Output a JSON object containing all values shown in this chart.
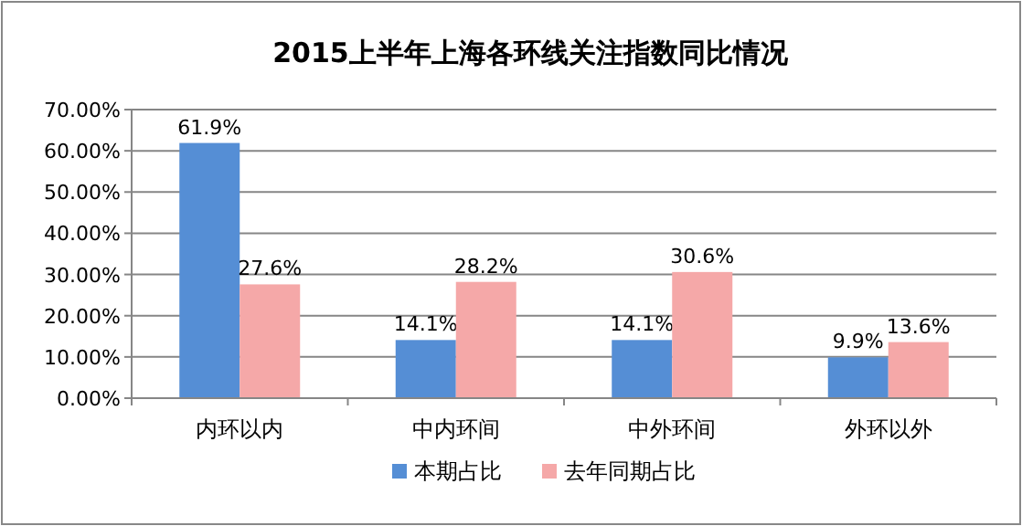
{
  "chart_data": {
    "type": "bar",
    "title": "2015上半年上海各环线关注指数同比情况",
    "categories": [
      "内环以内",
      "中内环间",
      "中外环间",
      "外环以外"
    ],
    "series": [
      {
        "name": "本期占比",
        "color": "#558ed5",
        "values": [
          61.9,
          14.1,
          14.1,
          9.9
        ],
        "value_labels": [
          "61.9%",
          "14.1%",
          "14.1%",
          "9.9%"
        ]
      },
      {
        "name": "去年同期占比",
        "color": "#f5a8a8",
        "values": [
          27.6,
          28.2,
          30.6,
          13.6
        ],
        "value_labels": [
          "27.6%",
          "28.2%",
          "30.6%",
          "13.6%"
        ]
      }
    ],
    "ylim": [
      0,
      70
    ],
    "yticks": [
      {
        "value": 0,
        "label": "0.00%"
      },
      {
        "value": 10,
        "label": "10.00%"
      },
      {
        "value": 20,
        "label": "20.00%"
      },
      {
        "value": 30,
        "label": "30.00%"
      },
      {
        "value": 40,
        "label": "40.00%"
      },
      {
        "value": 50,
        "label": "50.00%"
      },
      {
        "value": 60,
        "label": "60.00%"
      },
      {
        "value": 70,
        "label": "70.00%"
      }
    ],
    "grid": "y",
    "legend": "bottom"
  }
}
